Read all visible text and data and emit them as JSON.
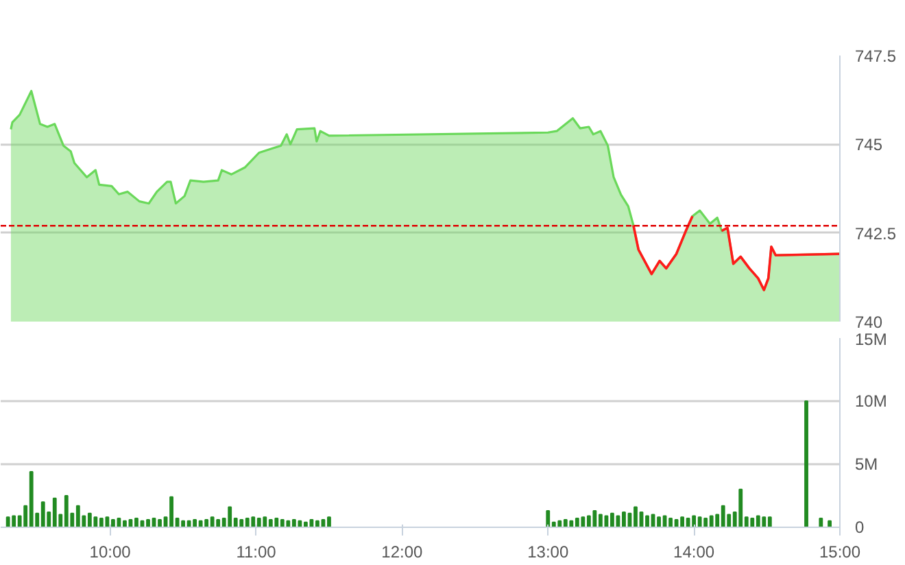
{
  "chart_data": [
    {
      "type": "area",
      "xlim": [
        9.25,
        15
      ],
      "ylim": [
        740,
        747.5
      ],
      "yticks": [
        740,
        742.5,
        745,
        747.5
      ],
      "grid": "y",
      "tick_labels": "y",
      "x": [
        9.32,
        9.33,
        9.38,
        9.46,
        9.52,
        9.57,
        9.62,
        9.68,
        9.73,
        9.755,
        9.84,
        9.9,
        9.925,
        10.01,
        10.06,
        10.12,
        10.2,
        10.265,
        10.32,
        10.39,
        10.415,
        10.45,
        10.51,
        10.55,
        10.64,
        10.74,
        10.765,
        10.83,
        10.925,
        11.02,
        11.11,
        11.17,
        11.21,
        11.235,
        11.28,
        11.4,
        11.415,
        11.44,
        11.5,
        13.0,
        13.06,
        13.17,
        13.22,
        13.28,
        13.31,
        13.36,
        13.41,
        13.45,
        13.5,
        13.55,
        13.585,
        13.62,
        13.71,
        13.765,
        13.81,
        13.88,
        13.945,
        13.99,
        14.04,
        14.11,
        14.16,
        14.19,
        14.23,
        14.27,
        14.32,
        14.38,
        14.44,
        14.48,
        14.51,
        14.53,
        14.56,
        15.0
      ],
      "series": [
        {
          "type": "area",
          "color": "#6ad85a",
          "values": [
            745.42,
            745.62,
            745.83,
            746.5,
            745.57,
            745.49,
            745.57,
            744.96,
            744.8,
            744.47,
            744.07,
            744.27,
            743.86,
            743.82,
            743.59,
            743.66,
            743.39,
            743.33,
            743.66,
            743.94,
            743.94,
            743.33,
            743.54,
            743.98,
            743.94,
            743.98,
            744.27,
            744.15,
            744.35,
            744.76,
            744.88,
            744.96,
            745.28,
            745.0,
            745.42,
            745.45,
            745.08,
            745.37,
            745.24,
            745.33,
            745.37,
            745.73,
            745.45,
            745.49,
            745.28,
            745.37,
            744.96,
            744.07,
            743.58,
            743.25,
            742.72,
            742.03,
            741.34,
            741.71,
            741.5,
            741.91,
            742.56,
            742.97,
            743.13,
            742.76,
            742.93,
            742.56,
            742.64,
            741.63,
            741.83,
            741.5,
            741.22,
            740.89,
            741.22,
            742.11,
            741.87,
            741.91
          ]
        },
        {
          "type": "line",
          "color": "#ff1a1a",
          "values": [
            null,
            null,
            null,
            null,
            null,
            null,
            null,
            null,
            null,
            null,
            null,
            null,
            null,
            null,
            null,
            null,
            null,
            null,
            null,
            null,
            null,
            null,
            null,
            null,
            null,
            null,
            null,
            null,
            null,
            null,
            null,
            null,
            null,
            null,
            null,
            null,
            null,
            null,
            null,
            null,
            null,
            null,
            null,
            null,
            null,
            null,
            null,
            null,
            null,
            null,
            742.72,
            742.03,
            741.34,
            741.71,
            741.5,
            741.91,
            742.56,
            742.97,
            null,
            null,
            null,
            742.56,
            742.64,
            741.63,
            741.83,
            741.5,
            741.22,
            740.89,
            741.22,
            742.11,
            741.87,
            741.91
          ]
        }
      ],
      "ref_lines": [
        {
          "axis": "y",
          "value": 742.7,
          "color": "#e00000",
          "line_style": "dashed"
        }
      ]
    },
    {
      "type": "bar",
      "xlim": [
        9.25,
        15
      ],
      "ylim": [
        0,
        15
      ],
      "grid": "y",
      "color": "#228b22",
      "yticks": [
        0,
        {
          "value": 5,
          "label": "5M"
        },
        {
          "value": 10,
          "label": "10M"
        },
        {
          "value": 15,
          "label": "15M"
        }
      ],
      "xticks": [
        {
          "value": 10,
          "label": "10:00"
        },
        {
          "value": 11,
          "label": "11:00"
        },
        {
          "value": 12,
          "label": "12:00"
        },
        {
          "value": 13,
          "label": "13:00"
        },
        {
          "value": 14,
          "label": "14:00"
        },
        {
          "value": 15,
          "label": "15:00"
        }
      ],
      "x": [
        9.3,
        9.34,
        9.38,
        9.42,
        9.46,
        9.5,
        9.54,
        9.58,
        9.62,
        9.66,
        9.7,
        9.74,
        9.78,
        9.82,
        9.86,
        9.9,
        9.94,
        9.98,
        10.02,
        10.06,
        10.1,
        10.14,
        10.18,
        10.22,
        10.26,
        10.3,
        10.34,
        10.38,
        10.42,
        10.46,
        10.5,
        10.54,
        10.58,
        10.62,
        10.66,
        10.7,
        10.74,
        10.78,
        10.82,
        10.86,
        10.9,
        10.94,
        10.98,
        11.02,
        11.06,
        11.1,
        11.14,
        11.18,
        11.22,
        11.26,
        11.3,
        11.34,
        11.38,
        11.42,
        11.46,
        11.5,
        13.0,
        13.04,
        13.08,
        13.12,
        13.16,
        13.2,
        13.24,
        13.28,
        13.32,
        13.36,
        13.4,
        13.44,
        13.48,
        13.52,
        13.56,
        13.6,
        13.64,
        13.68,
        13.72,
        13.76,
        13.8,
        13.84,
        13.88,
        13.92,
        13.96,
        14.0,
        14.04,
        14.08,
        14.12,
        14.16,
        14.2,
        14.24,
        14.28,
        14.32,
        14.36,
        14.4,
        14.44,
        14.48,
        14.52,
        14.77,
        14.87,
        14.93
      ],
      "values": [
        0.8,
        0.9,
        0.9,
        1.7,
        4.4,
        1.1,
        2.0,
        1.2,
        2.3,
        1.0,
        2.5,
        1.1,
        1.7,
        0.9,
        1.1,
        0.8,
        0.7,
        0.8,
        0.6,
        0.7,
        0.5,
        0.6,
        0.7,
        0.5,
        0.6,
        0.7,
        0.6,
        0.8,
        2.4,
        0.7,
        0.5,
        0.5,
        0.6,
        0.5,
        0.6,
        0.8,
        0.6,
        0.7,
        1.6,
        0.7,
        0.6,
        0.7,
        0.8,
        0.7,
        0.8,
        0.6,
        0.7,
        0.6,
        0.5,
        0.6,
        0.5,
        0.4,
        0.6,
        0.5,
        0.6,
        0.8,
        1.3,
        0.4,
        0.5,
        0.6,
        0.5,
        0.7,
        0.8,
        0.9,
        1.3,
        1.0,
        0.9,
        1.1,
        0.9,
        1.2,
        1.1,
        1.6,
        1.2,
        0.9,
        1.0,
        0.8,
        0.9,
        0.7,
        0.6,
        0.8,
        0.7,
        0.9,
        0.8,
        0.7,
        0.9,
        1.0,
        1.7,
        1.0,
        1.2,
        3.0,
        0.8,
        0.7,
        0.9,
        0.8,
        0.8,
        10.0,
        0.7,
        0.5
      ]
    }
  ]
}
